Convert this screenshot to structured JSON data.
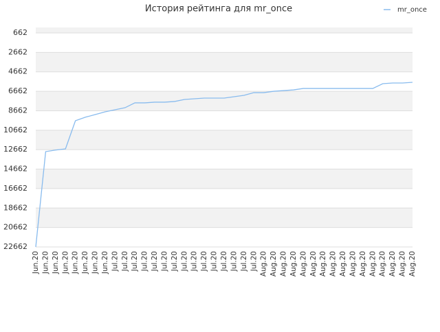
{
  "chart_data": {
    "type": "line",
    "title": "История рейтинга для mr_once",
    "categories": [
      "Jun.20",
      "Jun.20",
      "Jun.20",
      "Jun.20",
      "Jun.20",
      "Jun.20",
      "Jun.20",
      "Jun.20",
      "Jul.20",
      "Jul.20",
      "Jul.20",
      "Jul.20",
      "Jul.20",
      "Jul.20",
      "Jul.20",
      "Jul.20",
      "Jul.20",
      "Jul.20",
      "Jul.20",
      "Jul.20",
      "Jul.20",
      "Jul.20",
      "Jul.20",
      "Aug.20",
      "Aug.20",
      "Aug.20",
      "Aug.20",
      "Aug.20",
      "Aug.20",
      "Aug.20",
      "Aug.20",
      "Aug.20",
      "Aug.20",
      "Aug.20",
      "Aug.20",
      "Aug.20",
      "Aug.20",
      "Aug.20",
      "Aug.20"
    ],
    "series": [
      {
        "name": "mr_once",
        "color": "#88bbee",
        "values": [
          22662,
          12862,
          12700,
          12580,
          9690,
          9330,
          9050,
          8770,
          8560,
          8350,
          7850,
          7850,
          7780,
          7780,
          7710,
          7500,
          7430,
          7360,
          7360,
          7360,
          7220,
          7080,
          6800,
          6800,
          6660,
          6590,
          6520,
          6370,
          6370,
          6370,
          6370,
          6370,
          6370,
          6370,
          6370,
          5880,
          5810,
          5810,
          5740
        ]
      }
    ],
    "ylim": [
      662,
      22662
    ],
    "y_inverted": true,
    "yticks": [
      662,
      2662,
      4662,
      6662,
      8662,
      10662,
      12662,
      14662,
      16662,
      18662,
      20662,
      22662
    ],
    "grid": true,
    "legend": "top-right"
  }
}
